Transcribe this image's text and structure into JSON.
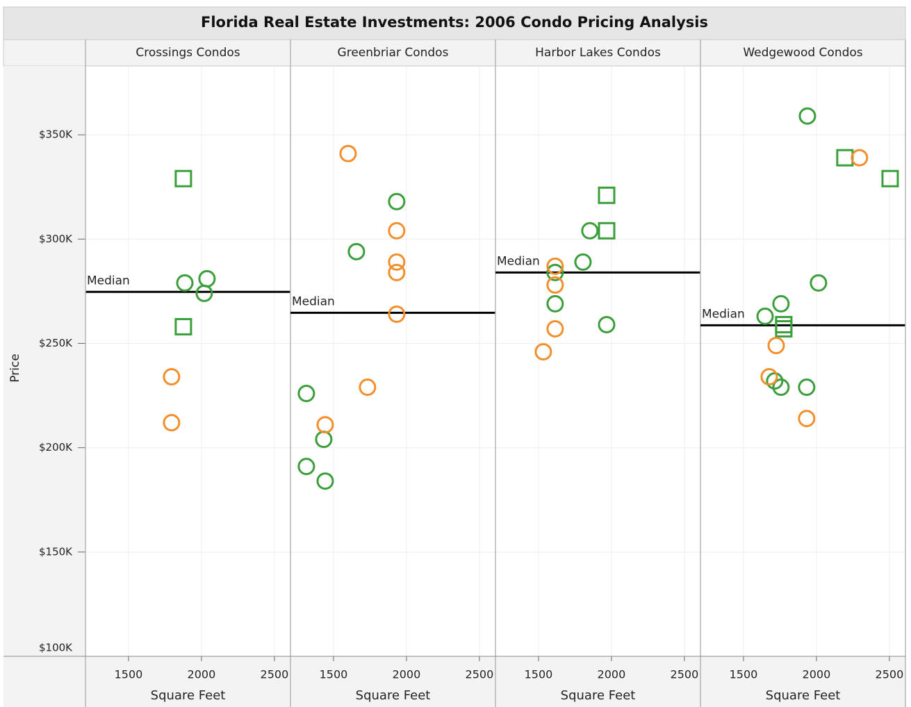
{
  "chart_data": {
    "type": "scatter",
    "title": "Florida Real Estate Investments:  2006 Condo Pricing Analysis",
    "ylabel": "Price",
    "ylim": [
      100000,
      383000
    ],
    "yticks": [
      {
        "value": 100000,
        "label": "$100K"
      },
      {
        "value": 150000,
        "label": "$150K"
      },
      {
        "value": 200000,
        "label": "$200K"
      },
      {
        "value": 250000,
        "label": "$250K"
      },
      {
        "value": 300000,
        "label": "$300K"
      },
      {
        "value": 350000,
        "label": "$350K"
      }
    ],
    "xlim": [
      1205,
      2610
    ],
    "xticks": [
      1500,
      2000,
      2500
    ],
    "grid": true,
    "panels": [
      {
        "title": "Crossings Condos",
        "xlabel": "Square Feet",
        "median": 274700,
        "median_label": "Median",
        "series": [
          {
            "color": "#3a9e3a",
            "marker": "circle",
            "x": [
              1886,
              2038,
              2019
            ],
            "values": [
              279000,
              281000,
              274000
            ]
          },
          {
            "color": "#3a9e3a",
            "marker": "square",
            "x": [
              1876,
              1876
            ],
            "values": [
              329000,
              258000
            ]
          },
          {
            "color": "#f28e2b",
            "marker": "circle",
            "x": [
              1795,
              1795
            ],
            "values": [
              234000,
              212000
            ]
          }
        ]
      },
      {
        "title": "Greenbriar Condos",
        "xlabel": "Square Feet",
        "median": 264700,
        "median_label": "Median",
        "series": [
          {
            "color": "#3a9e3a",
            "marker": "circle",
            "x": [
              1933,
              1657,
              1314,
              1433,
              1314,
              1443
            ],
            "values": [
              318000,
              294000,
              226000,
              204000,
              191000,
              184000
            ]
          },
          {
            "color": "#f28e2b",
            "marker": "circle",
            "x": [
              1600,
              1933,
              1933,
              1933,
              1933,
              1733,
              1443
            ],
            "values": [
              341000,
              304000,
              289000,
              284000,
              264000,
              229000,
              211000
            ]
          }
        ]
      },
      {
        "title": "Harbor Lakes Condos",
        "xlabel": "Square Feet",
        "median": 284000,
        "median_label": "Median",
        "series": [
          {
            "color": "#3a9e3a",
            "marker": "circle",
            "x": [
              1852,
              1805,
              1614,
              1614,
              1967
            ],
            "values": [
              304000,
              289000,
              284000,
              269000,
              259000
            ]
          },
          {
            "color": "#3a9e3a",
            "marker": "square",
            "x": [
              1967,
              1967
            ],
            "values": [
              321000,
              304000
            ]
          },
          {
            "color": "#f28e2b",
            "marker": "circle",
            "x": [
              1614,
              1614,
              1614,
              1533
            ],
            "values": [
              287000,
              278000,
              257000,
              246000
            ]
          }
        ]
      },
      {
        "title": "Wedgewood Condos",
        "xlabel": "Square Feet",
        "median": 258700,
        "median_label": "Median",
        "series": [
          {
            "color": "#3a9e3a",
            "marker": "circle",
            "x": [
              1938,
              2014,
              1757,
              1648,
              1714,
              1757,
              1933
            ],
            "values": [
              359000,
              279000,
              269000,
              263000,
              232000,
              229000,
              229000
            ]
          },
          {
            "color": "#3a9e3a",
            "marker": "square",
            "x": [
              2195,
              2505,
              1776,
              1776
            ],
            "values": [
              339000,
              329000,
              259000,
              257000
            ]
          },
          {
            "color": "#f28e2b",
            "marker": "circle",
            "x": [
              2295,
              1724,
              1676,
              1933
            ],
            "values": [
              339000,
              249000,
              234000,
              214000
            ]
          }
        ]
      }
    ]
  }
}
